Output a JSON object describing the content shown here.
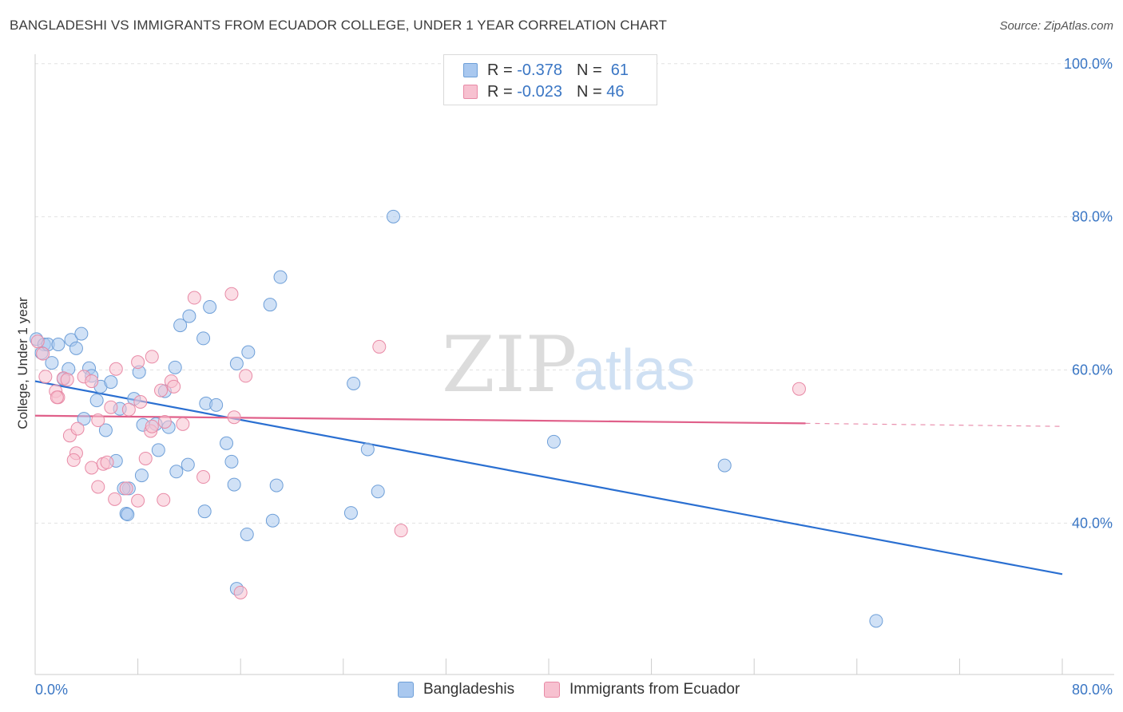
{
  "title": "BANGLADESHI VS IMMIGRANTS FROM ECUADOR COLLEGE, UNDER 1 YEAR CORRELATION CHART",
  "source": "Source: ZipAtlas.com",
  "watermark": {
    "zip": "ZIP",
    "atlas": "atlas"
  },
  "legend": {
    "rows": [
      {
        "r_label": "R =",
        "r_value": "-0.378",
        "n_label": "N =",
        "n_value": "61",
        "color": "#a9c8ef",
        "border": "#6e9fd8"
      },
      {
        "r_label": "R =",
        "r_value": "-0.023",
        "n_label": "N =",
        "n_value": "46",
        "color": "#f7c1d0",
        "border": "#e88aa6"
      }
    ]
  },
  "bottom_legend": [
    {
      "label": "Bangladeshis",
      "color": "#a9c8ef",
      "border": "#6e9fd8"
    },
    {
      "label": "Immigrants from Ecuador",
      "color": "#f7c1d0",
      "border": "#e88aa6"
    }
  ],
  "chart_data": {
    "type": "scatter",
    "title": "BANGLADESHI VS IMMIGRANTS FROM ECUADOR COLLEGE, UNDER 1 YEAR CORRELATION CHART",
    "xlabel": "",
    "ylabel": "College, Under 1 year",
    "xlim": [
      0,
      80
    ],
    "ylim": [
      22,
      103
    ],
    "x_tick_labels": [
      {
        "value": 0,
        "label": "0.0%"
      },
      {
        "value": 80,
        "label": "80.0%"
      }
    ],
    "y_tick_labels": [
      {
        "value": 100,
        "label": "100.0%"
      },
      {
        "value": 80,
        "label": "80.0%"
      },
      {
        "value": 60,
        "label": "60.0%"
      },
      {
        "value": 40,
        "label": "40.0%"
      }
    ],
    "grid": true,
    "legend_position": "top-center",
    "series": [
      {
        "name": "Bangladeshis",
        "color": "#6e9fd8",
        "fill": "#a9c8ef",
        "trend": {
          "x": [
            0,
            80
          ],
          "y": [
            60.3,
            35.1
          ],
          "color": "#2a6fd1",
          "dashed_from": null
        },
        "points": [
          [
            0.1,
            65.8
          ],
          [
            0.7,
            65.1
          ],
          [
            0.5,
            64.0
          ],
          [
            1.3,
            62.7
          ],
          [
            1.0,
            65.1
          ],
          [
            1.8,
            65.1
          ],
          [
            2.8,
            65.7
          ],
          [
            3.2,
            64.6
          ],
          [
            3.6,
            66.5
          ],
          [
            2.6,
            61.9
          ],
          [
            4.2,
            62.0
          ],
          [
            2.2,
            60.6
          ],
          [
            4.4,
            61.0
          ],
          [
            5.1,
            59.6
          ],
          [
            5.9,
            60.2
          ],
          [
            4.8,
            57.8
          ],
          [
            6.6,
            56.7
          ],
          [
            7.7,
            58.0
          ],
          [
            8.1,
            61.5
          ],
          [
            10.1,
            59.0
          ],
          [
            10.9,
            62.1
          ],
          [
            11.3,
            67.6
          ],
          [
            12.0,
            68.8
          ],
          [
            13.1,
            65.9
          ],
          [
            13.6,
            70.0
          ],
          [
            3.8,
            55.4
          ],
          [
            5.5,
            53.9
          ],
          [
            6.3,
            49.9
          ],
          [
            8.4,
            54.6
          ],
          [
            9.4,
            54.7
          ],
          [
            9.6,
            51.3
          ],
          [
            10.4,
            54.3
          ],
          [
            11.0,
            48.5
          ],
          [
            11.9,
            49.4
          ],
          [
            13.3,
            57.4
          ],
          [
            14.1,
            57.2
          ],
          [
            14.9,
            52.2
          ],
          [
            15.3,
            49.8
          ],
          [
            15.5,
            46.8
          ],
          [
            15.7,
            62.6
          ],
          [
            16.6,
            64.1
          ],
          [
            18.3,
            70.3
          ],
          [
            19.1,
            73.9
          ],
          [
            18.8,
            46.7
          ],
          [
            18.5,
            42.1
          ],
          [
            16.5,
            40.3
          ],
          [
            13.2,
            43.3
          ],
          [
            8.3,
            48.0
          ],
          [
            7.3,
            46.3
          ],
          [
            6.9,
            46.3
          ],
          [
            7.1,
            43.0
          ],
          [
            15.7,
            33.2
          ],
          [
            24.8,
            60.0
          ],
          [
            25.9,
            51.4
          ],
          [
            26.7,
            45.9
          ],
          [
            24.6,
            43.1
          ],
          [
            27.9,
            81.8
          ],
          [
            40.4,
            52.4
          ],
          [
            53.7,
            49.3
          ],
          [
            65.5,
            29.0
          ],
          [
            7.2,
            42.9
          ]
        ]
      },
      {
        "name": "Immigrants from Ecuador",
        "color": "#e88aa6",
        "fill": "#f7c1d0",
        "trend": {
          "x": [
            0,
            60,
            80
          ],
          "y": [
            55.8,
            54.8,
            54.4
          ],
          "color": "#e0608a",
          "dashed_from": 60
        },
        "points": [
          [
            0.2,
            65.5
          ],
          [
            0.6,
            63.9
          ],
          [
            0.8,
            60.9
          ],
          [
            1.6,
            59.0
          ],
          [
            2.2,
            60.7
          ],
          [
            1.8,
            58.2
          ],
          [
            2.5,
            60.5
          ],
          [
            3.8,
            60.9
          ],
          [
            4.4,
            60.3
          ],
          [
            6.3,
            61.9
          ],
          [
            8.0,
            62.8
          ],
          [
            9.1,
            63.5
          ],
          [
            9.8,
            59.1
          ],
          [
            10.6,
            60.3
          ],
          [
            10.8,
            59.6
          ],
          [
            8.2,
            57.6
          ],
          [
            12.4,
            71.2
          ],
          [
            15.3,
            71.7
          ],
          [
            16.4,
            61.0
          ],
          [
            2.7,
            53.2
          ],
          [
            3.3,
            54.1
          ],
          [
            4.9,
            55.2
          ],
          [
            5.9,
            56.9
          ],
          [
            7.3,
            56.6
          ],
          [
            9.0,
            53.8
          ],
          [
            9.1,
            54.4
          ],
          [
            11.5,
            54.7
          ],
          [
            15.5,
            55.6
          ],
          [
            3.2,
            50.9
          ],
          [
            3.0,
            50.0
          ],
          [
            4.4,
            49.0
          ],
          [
            5.3,
            49.5
          ],
          [
            5.6,
            49.7
          ],
          [
            8.6,
            50.2
          ],
          [
            4.9,
            46.5
          ],
          [
            7.1,
            46.3
          ],
          [
            6.2,
            44.9
          ],
          [
            8.0,
            44.7
          ],
          [
            10.0,
            44.8
          ],
          [
            13.1,
            47.8
          ],
          [
            16.0,
            32.7
          ],
          [
            26.8,
            64.8
          ],
          [
            28.5,
            40.8
          ],
          [
            59.5,
            59.3
          ],
          [
            10.1,
            55.0
          ],
          [
            1.7,
            58.2
          ]
        ]
      }
    ]
  }
}
